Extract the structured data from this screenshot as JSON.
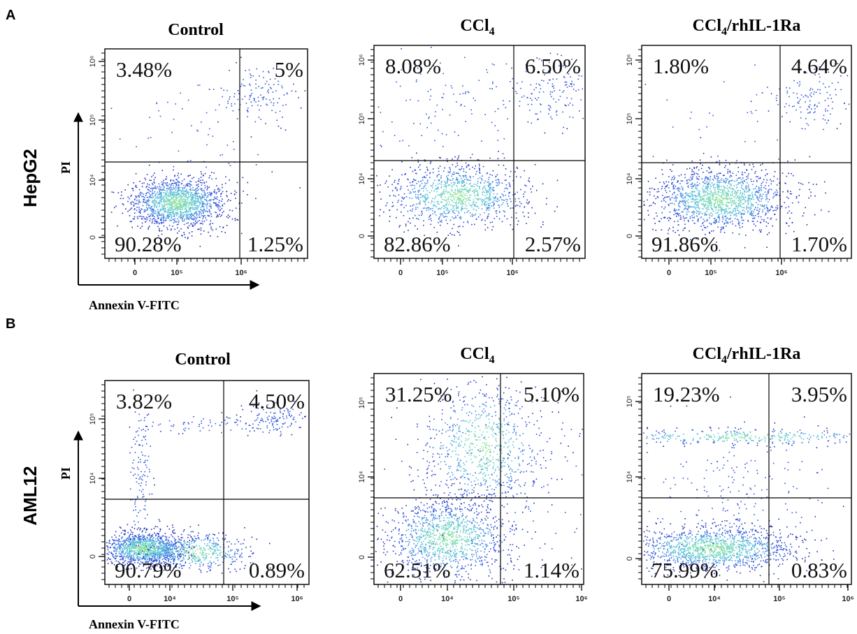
{
  "panels": {
    "A": "A",
    "B": "B"
  },
  "chart_data": [
    {
      "type": "scatter",
      "panel": "A",
      "cell_line": "HepG2",
      "title": "Control",
      "title_sub": "",
      "xlabel": "Annexin V-FITC",
      "ylabel": "PI",
      "x_ticks": [
        "0",
        "10⁵",
        "10⁶"
      ],
      "y_ticks": [
        "0",
        "10⁴",
        "10⁵",
        "10⁶"
      ],
      "quadrants": {
        "upper_left": "3.48%",
        "upper_right": "5%",
        "lower_left": "90.28%",
        "lower_right": "1.25%"
      }
    },
    {
      "type": "scatter",
      "panel": "A",
      "cell_line": "HepG2",
      "title": "CCl",
      "title_sub": "4",
      "xlabel": "",
      "ylabel": "",
      "x_ticks": [
        "0",
        "10⁵",
        "10⁶"
      ],
      "y_ticks": [
        "0",
        "10⁴",
        "10⁵",
        "10⁶"
      ],
      "quadrants": {
        "upper_left": "8.08%",
        "upper_right": "6.50%",
        "lower_left": "82.86%",
        "lower_right": "2.57%"
      }
    },
    {
      "type": "scatter",
      "panel": "A",
      "cell_line": "HepG2",
      "title": "CCl",
      "title_sub": "4",
      "title_rest": "/rhIL-1Ra",
      "xlabel": "",
      "ylabel": "",
      "x_ticks": [
        "0",
        "10⁵",
        "10⁶"
      ],
      "y_ticks": [
        "0",
        "10⁴",
        "10⁵",
        "10⁶"
      ],
      "quadrants": {
        "upper_left": "1.80%",
        "upper_right": "4.64%",
        "lower_left": "91.86%",
        "lower_right": "1.70%"
      }
    },
    {
      "type": "scatter",
      "panel": "B",
      "cell_line": "AML12",
      "title": "Control",
      "title_sub": "",
      "xlabel": "Annexin V-FITC",
      "ylabel": "PI",
      "x_ticks": [
        "0",
        "10⁴",
        "10⁵",
        "10⁶"
      ],
      "y_ticks": [
        "0",
        "10⁴",
        "10⁵"
      ],
      "quadrants": {
        "upper_left": "3.82%",
        "upper_right": "4.50%",
        "lower_left": "90.79%",
        "lower_right": "0.89%"
      }
    },
    {
      "type": "scatter",
      "panel": "B",
      "cell_line": "AML12",
      "title": "CCl",
      "title_sub": "4",
      "xlabel": "",
      "ylabel": "",
      "x_ticks": [
        "0",
        "10⁴",
        "10⁵",
        "10⁶"
      ],
      "y_ticks": [
        "0",
        "10⁴",
        "10⁵"
      ],
      "quadrants": {
        "upper_left": "31.25%",
        "upper_right": "5.10%",
        "lower_left": "62.51%",
        "lower_right": "1.14%"
      }
    },
    {
      "type": "scatter",
      "panel": "B",
      "cell_line": "AML12",
      "title": "CCl",
      "title_sub": "4",
      "title_rest": "/rhIL-1Ra",
      "xlabel": "",
      "ylabel": "",
      "x_ticks": [
        "0",
        "10⁴",
        "10⁵",
        "10⁶"
      ],
      "y_ticks": [
        "0",
        "10⁴",
        "10⁵"
      ],
      "quadrants": {
        "upper_left": "19.23%",
        "upper_right": "3.95%",
        "lower_left": "75.99%",
        "lower_right": "0.83%"
      }
    }
  ]
}
